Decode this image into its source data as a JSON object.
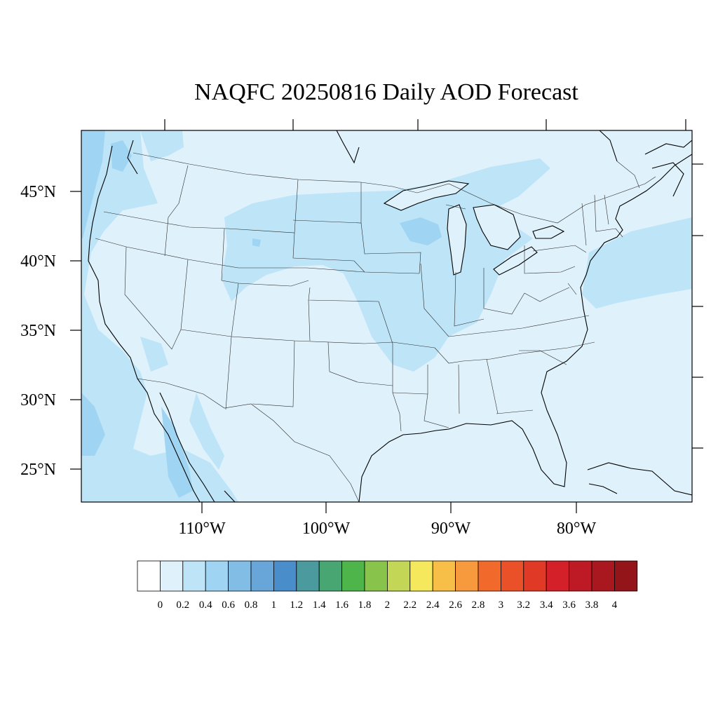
{
  "title": "NAQFC 20250816 Daily AOD Forecast",
  "map": {
    "projection": "lambert-conformal",
    "background_color": "#dff1fb",
    "lat_labels": [
      "45°N",
      "40°N",
      "35°N",
      "30°N",
      "25°N"
    ],
    "lon_labels": [
      "110°W",
      "100°W",
      "90°W",
      "80°W"
    ]
  },
  "colorbar": {
    "levels": [
      "0",
      "0.2",
      "0.4",
      "0.6",
      "0.8",
      "1",
      "1.2",
      "1.4",
      "1.6",
      "1.8",
      "2",
      "2.2",
      "2.4",
      "2.6",
      "2.8",
      "3",
      "3.2",
      "3.4",
      "3.6",
      "3.8",
      "4"
    ],
    "colors": [
      "#ffffff",
      "#dff1fb",
      "#bde4f7",
      "#9fd5f2",
      "#82bde6",
      "#68a6da",
      "#4a8dcb",
      "#4b9a9d",
      "#48a673",
      "#4db54a",
      "#88c44c",
      "#c3d655",
      "#f6e85c",
      "#f8bf48",
      "#f69a3d",
      "#f26a2b",
      "#ea5128",
      "#e03a26",
      "#d42028",
      "#bd1a25",
      "#a9171f",
      "#941519"
    ]
  }
}
